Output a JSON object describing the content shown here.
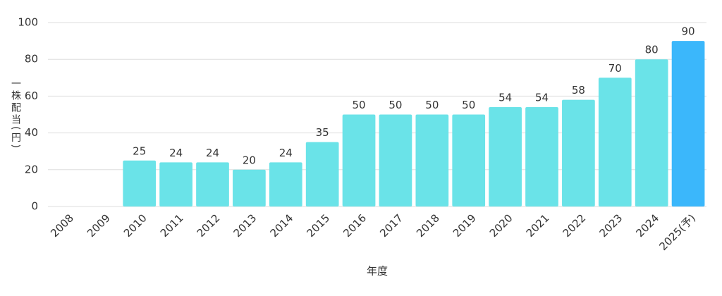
{
  "chart_data": {
    "type": "bar",
    "y_label": "一株配当(円)",
    "x_label": "年度",
    "categories": [
      "2008",
      "2009",
      "2010",
      "2011",
      "2012",
      "2013",
      "2014",
      "2015",
      "2016",
      "2017",
      "2018",
      "2019",
      "2020",
      "2021",
      "2022",
      "2023",
      "2024",
      "2025(予)"
    ],
    "values": [
      null,
      null,
      25,
      24,
      24,
      20,
      24,
      35,
      50,
      50,
      50,
      50,
      54,
      54,
      58,
      70,
      80,
      90
    ],
    "colors": [
      "#6ae3e8",
      "#6ae3e8",
      "#6ae3e8",
      "#6ae3e8",
      "#6ae3e8",
      "#6ae3e8",
      "#6ae3e8",
      "#6ae3e8",
      "#6ae3e8",
      "#6ae3e8",
      "#6ae3e8",
      "#6ae3e8",
      "#6ae3e8",
      "#6ae3e8",
      "#6ae3e8",
      "#6ae3e8",
      "#6ae3e8",
      "#3bb7fb"
    ],
    "ylim": [
      0,
      100
    ],
    "yticks": [
      0,
      20,
      40,
      60,
      80,
      100
    ],
    "grid": true
  }
}
